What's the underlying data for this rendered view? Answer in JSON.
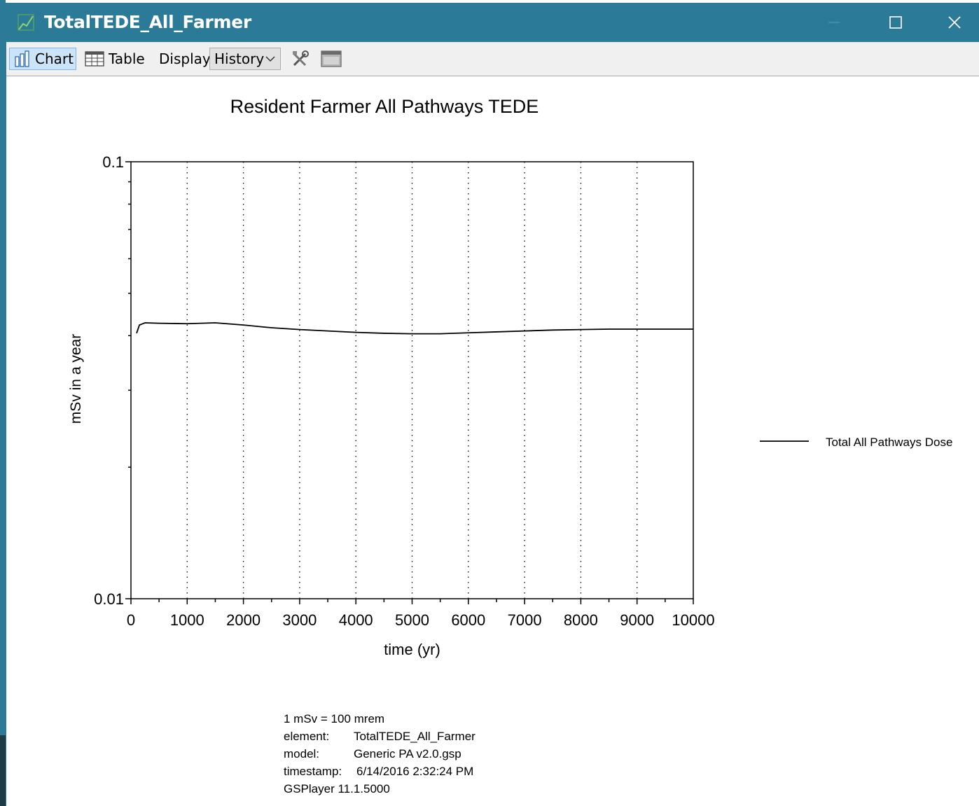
{
  "window": {
    "title": "TotalTEDE_All_Farmer"
  },
  "toolbar": {
    "chart_label": "Chart",
    "table_label": "Table",
    "display_label": "Display:",
    "display_value": "History"
  },
  "colors": {
    "titlebar": "#2b7a97",
    "active_tab": "#cce4f7",
    "series_line": "#000000"
  },
  "icons": {
    "app": "chart-line-icon",
    "chart": "bar-chart-icon",
    "table": "table-icon",
    "tools": "tools-icon",
    "window": "window-icon",
    "dropdown": "chevron-down-icon"
  },
  "chart_data": {
    "type": "line",
    "title": "Resident Farmer All Pathways TEDE",
    "xlabel": "time (yr)",
    "ylabel": "mSv in a year",
    "xlim": [
      0,
      10000
    ],
    "ylim": [
      0.01,
      0.1
    ],
    "yscale": "log",
    "x_ticks": [
      0,
      1000,
      2000,
      3000,
      4000,
      5000,
      6000,
      7000,
      8000,
      9000,
      10000
    ],
    "x_tick_labels": [
      "0",
      "1000",
      "2000",
      "3000",
      "4000",
      "5000",
      "6000",
      "7000",
      "8000",
      "9000",
      "10000"
    ],
    "y_tick_labels": [
      "0.1",
      "0.01"
    ],
    "grid": "vertical dotted",
    "legend_position": "right",
    "series": [
      {
        "name": "Total All Pathways Dose",
        "x": [
          100,
          150,
          250,
          500,
          1000,
          1500,
          2000,
          2500,
          3000,
          3500,
          4000,
          4500,
          5000,
          5500,
          6000,
          6500,
          7000,
          7500,
          8000,
          8500,
          9000,
          9500,
          10000
        ],
        "y": [
          0.0405,
          0.0423,
          0.0428,
          0.0427,
          0.0426,
          0.0428,
          0.0423,
          0.0417,
          0.0413,
          0.041,
          0.0407,
          0.0405,
          0.0404,
          0.0404,
          0.0406,
          0.0408,
          0.041,
          0.0412,
          0.0413,
          0.0414,
          0.0414,
          0.0414,
          0.0414
        ]
      }
    ]
  },
  "footer": {
    "line1": "1 mSv = 100 mrem",
    "element_label": "element:",
    "element_value": "TotalTEDE_All_Farmer",
    "model_label": "model:",
    "model_value": "Generic PA v2.0.gsp",
    "timestamp_label": "timestamp:",
    "timestamp_value": "6/14/2016 2:32:24 PM",
    "version": "GSPlayer 11.1.5000"
  }
}
